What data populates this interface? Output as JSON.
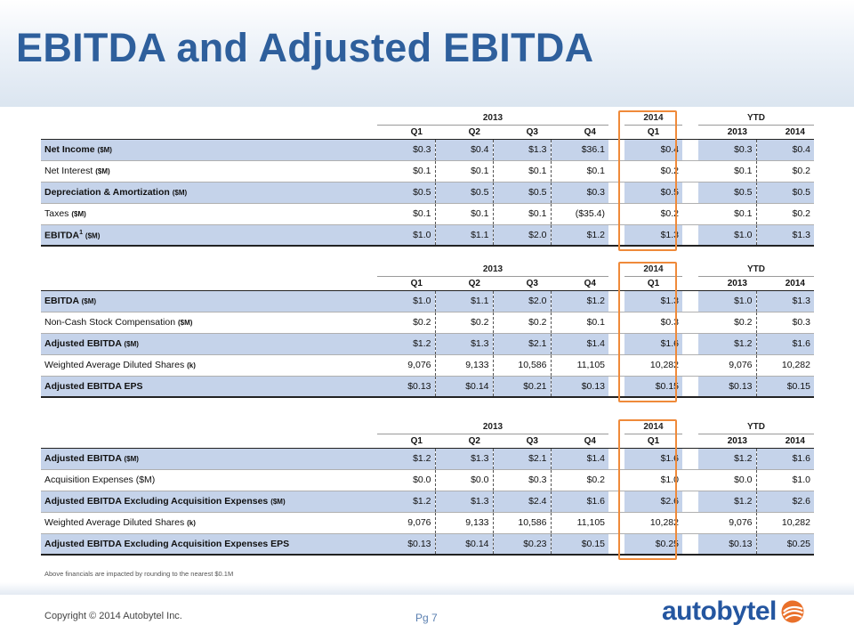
{
  "title": "EBITDA and Adjusted EBITDA",
  "headers": {
    "years": [
      "2013",
      "2014",
      "YTD"
    ],
    "quarters": [
      "Q1",
      "Q2",
      "Q3",
      "Q4"
    ],
    "q2014": "Q1",
    "ytd_years": [
      "2013",
      "2014"
    ]
  },
  "tables": [
    {
      "rows": [
        {
          "label": "Net Income",
          "unit": "($M)",
          "values": [
            "$0.3",
            "$0.4",
            "$1.3",
            "$36.1",
            "$0.4",
            "$0.3",
            "$0.4"
          ]
        },
        {
          "label": "Net Interest",
          "unit": "($M)",
          "values": [
            "$0.1",
            "$0.1",
            "$0.1",
            "$0.1",
            "$0.2",
            "$0.1",
            "$0.2"
          ]
        },
        {
          "label": "Depreciation & Amortization",
          "unit": "($M)",
          "values": [
            "$0.5",
            "$0.5",
            "$0.5",
            "$0.3",
            "$0.5",
            "$0.5",
            "$0.5"
          ]
        },
        {
          "label": "Taxes",
          "unit": "($M)",
          "values": [
            "$0.1",
            "$0.1",
            "$0.1",
            "($35.4)",
            "$0.2",
            "$0.1",
            "$0.2"
          ]
        },
        {
          "label": "EBITDA",
          "sup": "1",
          "unit": "($M)",
          "values": [
            "$1.0",
            "$1.1",
            "$2.0",
            "$1.2",
            "$1.3",
            "$1.0",
            "$1.3"
          ]
        }
      ]
    },
    {
      "rows": [
        {
          "label": "EBITDA",
          "unit": "($M)",
          "values": [
            "$1.0",
            "$1.1",
            "$2.0",
            "$1.2",
            "$1.3",
            "$1.0",
            "$1.3"
          ]
        },
        {
          "label": "Non-Cash Stock Compensation",
          "unit": "($M)",
          "values": [
            "$0.2",
            "$0.2",
            "$0.2",
            "$0.1",
            "$0.3",
            "$0.2",
            "$0.3"
          ]
        },
        {
          "label": "Adjusted EBITDA",
          "unit": "($M)",
          "values": [
            "$1.2",
            "$1.3",
            "$2.1",
            "$1.4",
            "$1.6",
            "$1.2",
            "$1.6"
          ]
        },
        {
          "label": "Weighted Average Diluted Shares",
          "unit": "(k)",
          "values": [
            "9,076",
            "9,133",
            "10,586",
            "11,105",
            "10,282",
            "9,076",
            "10,282"
          ]
        },
        {
          "label": "Adjusted EBITDA EPS",
          "unit": "",
          "values": [
            "$0.13",
            "$0.14",
            "$0.21",
            "$0.13",
            "$0.15",
            "$0.13",
            "$0.15"
          ]
        }
      ]
    },
    {
      "rows": [
        {
          "label": "Adjusted EBITDA",
          "unit": "($M)",
          "values": [
            "$1.2",
            "$1.3",
            "$2.1",
            "$1.4",
            "$1.6",
            "$1.2",
            "$1.6"
          ]
        },
        {
          "label": "Acquisition Expenses ($M)",
          "unit": "",
          "values": [
            "$0.0",
            "$0.0",
            "$0.3",
            "$0.2",
            "$1.0",
            "$0.0",
            "$1.0"
          ]
        },
        {
          "label": "Adjusted EBITDA Excluding Acquisition Expenses",
          "unit": "($M)",
          "values": [
            "$1.2",
            "$1.3",
            "$2.4",
            "$1.6",
            "$2.6",
            "$1.2",
            "$2.6"
          ]
        },
        {
          "label": "Weighted Average Diluted Shares",
          "unit": "(k)",
          "values": [
            "9,076",
            "9,133",
            "10,586",
            "11,105",
            "10,282",
            "9,076",
            "10,282"
          ]
        },
        {
          "label": "Adjusted EBITDA Excluding Acquisition Expenses EPS",
          "unit": "",
          "values": [
            "$0.13",
            "$0.14",
            "$0.23",
            "$0.15",
            "$0.25",
            "$0.13",
            "$0.25"
          ]
        }
      ]
    }
  ],
  "footnote": "Above financials are impacted by rounding to the nearest $0.1M",
  "copyright": "Copyright © 2014 Autobytel Inc.",
  "page_number": "Pg 7",
  "logo_text": "autobytel",
  "colors": {
    "title": "#2e5f9c",
    "row_shade": "#c5d3ea",
    "highlight_box": "#ef8a3a",
    "logo": "#2456a0"
  }
}
